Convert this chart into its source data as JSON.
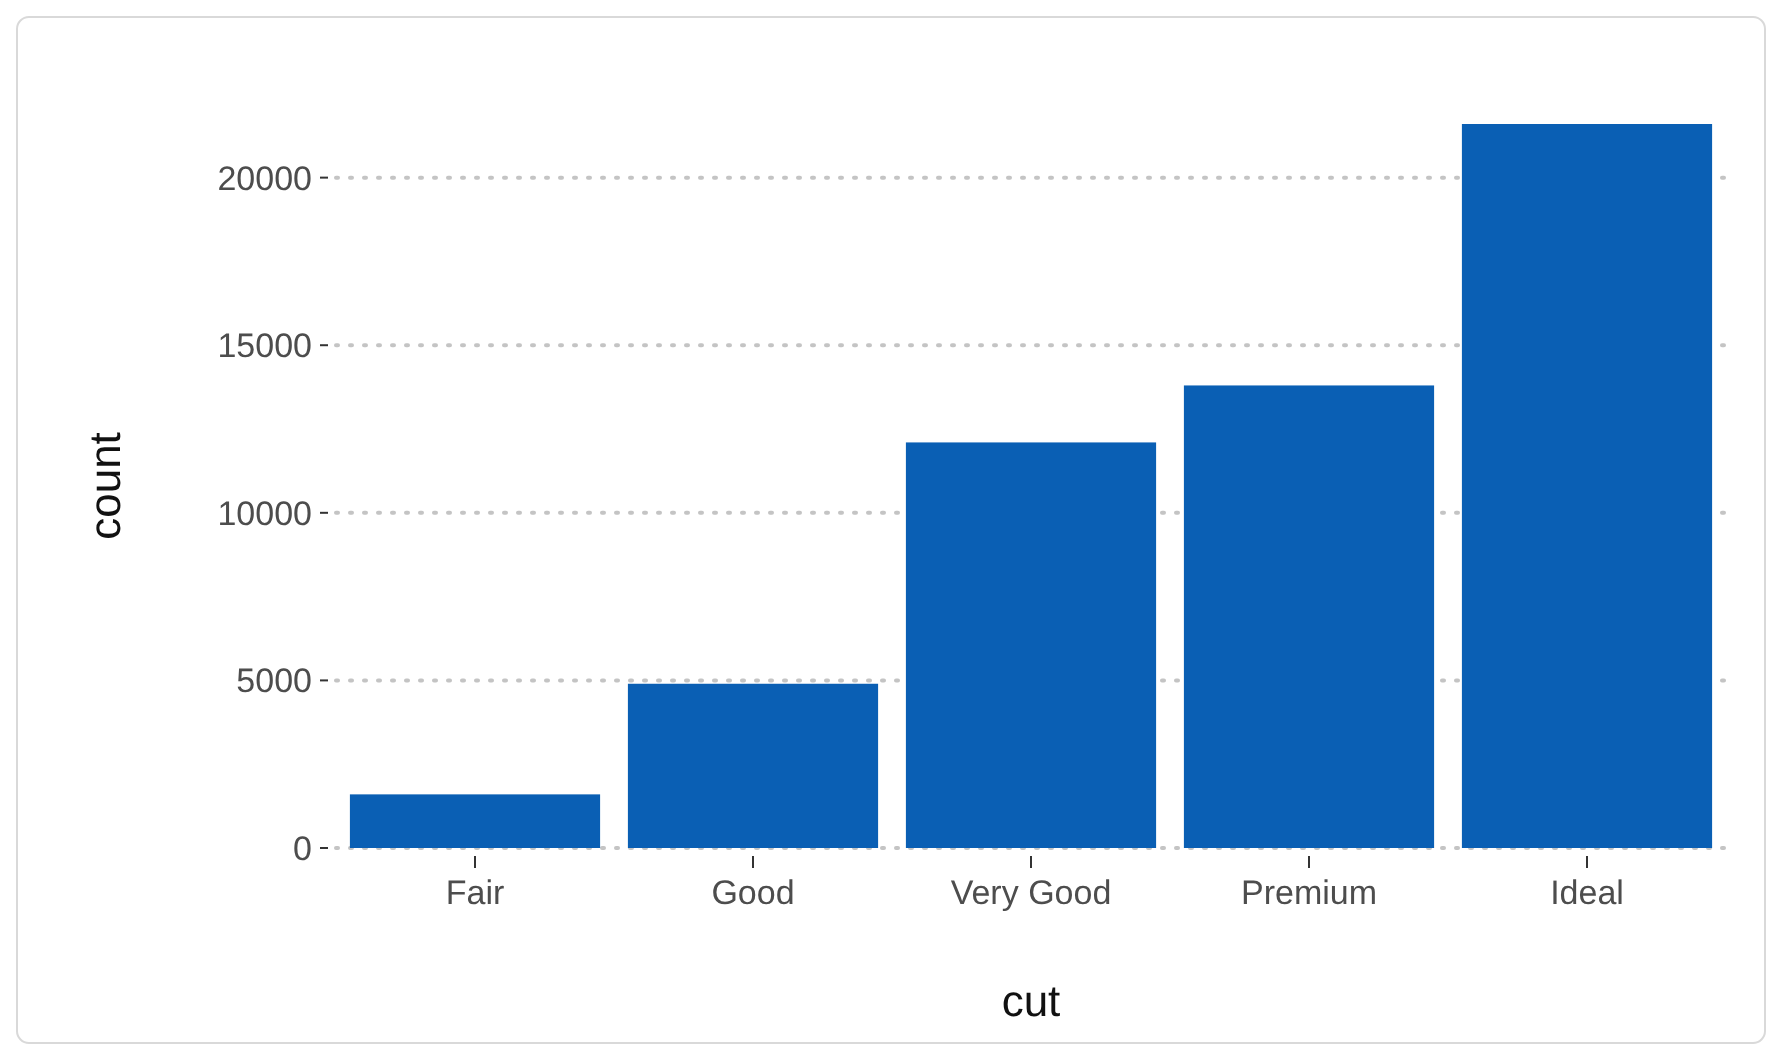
{
  "chart_data": {
    "type": "bar",
    "xlabel": "cut",
    "ylabel": "count",
    "categories": [
      "Fair",
      "Good",
      "Very Good",
      "Premium",
      "Ideal"
    ],
    "values": [
      1600,
      4900,
      12100,
      13800,
      21600
    ],
    "color": "#0a5fb4",
    "ylim": [
      0,
      21600
    ],
    "yticks": [
      0,
      5000,
      10000,
      15000,
      20000
    ],
    "grid": "y"
  }
}
